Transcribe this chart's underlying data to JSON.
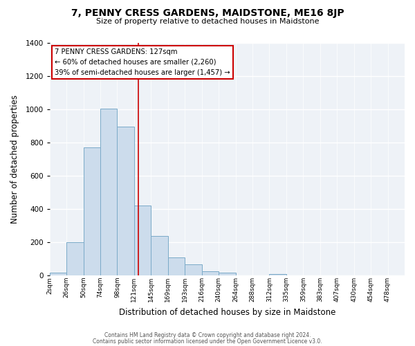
{
  "title": "7, PENNY CRESS GARDENS, MAIDSTONE, ME16 8JP",
  "subtitle": "Size of property relative to detached houses in Maidstone",
  "xlabel": "Distribution of detached houses by size in Maidstone",
  "ylabel": "Number of detached properties",
  "bar_color": "#ccdcec",
  "bar_edge_color": "#7aaac8",
  "bin_labels": [
    "2sqm",
    "26sqm",
    "50sqm",
    "74sqm",
    "98sqm",
    "121sqm",
    "145sqm",
    "169sqm",
    "193sqm",
    "216sqm",
    "240sqm",
    "264sqm",
    "288sqm",
    "312sqm",
    "335sqm",
    "359sqm",
    "383sqm",
    "407sqm",
    "430sqm",
    "454sqm",
    "478sqm"
  ],
  "bar_heights": [
    20,
    200,
    770,
    1005,
    895,
    420,
    240,
    110,
    70,
    25,
    20,
    0,
    0,
    10,
    0,
    0,
    0,
    0,
    0,
    0,
    0
  ],
  "ylim": [
    0,
    1400
  ],
  "yticks": [
    0,
    200,
    400,
    600,
    800,
    1000,
    1200,
    1400
  ],
  "annotation_title": "7 PENNY CRESS GARDENS: 127sqm",
  "annotation_line1": "← 60% of detached houses are smaller (2,260)",
  "annotation_line2": "39% of semi-detached houses are larger (1,457) →",
  "red_line_color": "#cc0000",
  "background_color": "#eef2f7",
  "footer_line1": "Contains HM Land Registry data © Crown copyright and database right 2024.",
  "footer_line2": "Contains public sector information licensed under the Open Government Licence v3.0."
}
